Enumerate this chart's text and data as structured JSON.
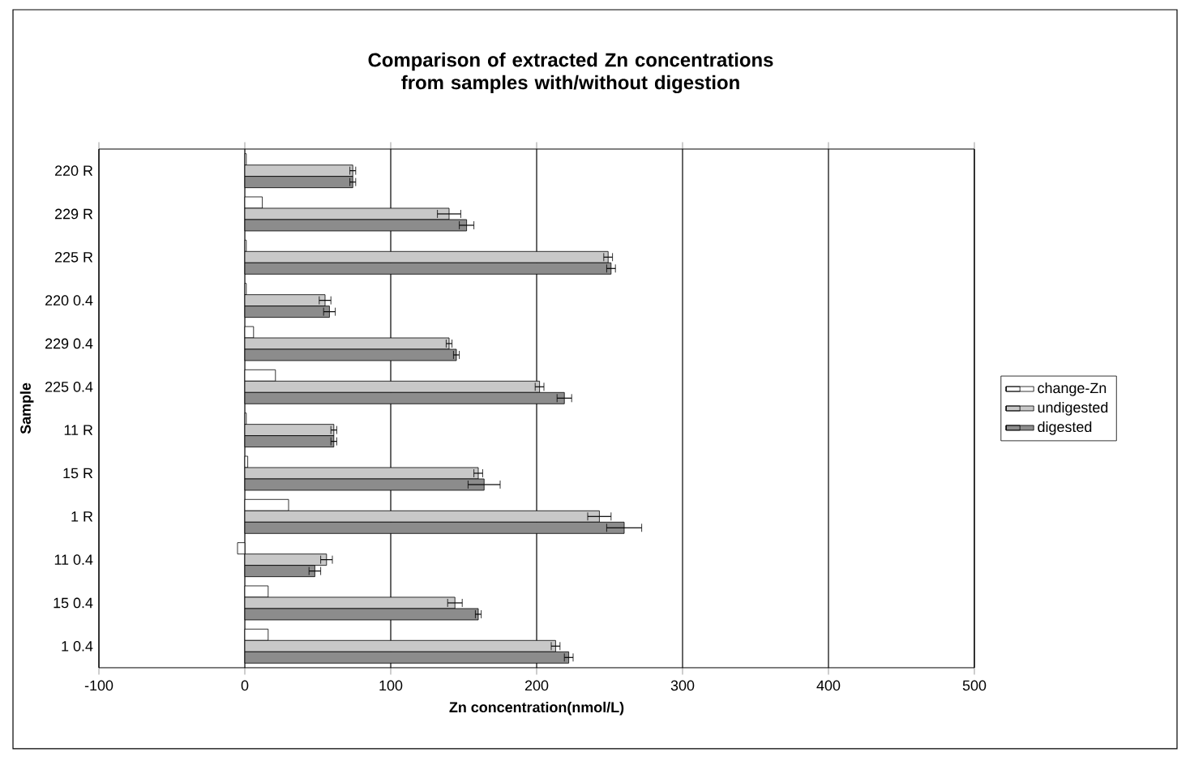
{
  "chart_data": {
    "type": "bar",
    "orientation": "horizontal",
    "title": "Comparison of extracted Zn concentrations from samples with/without digestion",
    "xlabel": "Zn concentration(nmol/L)",
    "ylabel": "Sample",
    "categories": [
      "220 R",
      "229 R",
      "225 R",
      "220 0.4",
      "229 0.4",
      "225 0.4",
      "11 R",
      "15 R",
      "1 R",
      "11 0.4",
      "15 0.4",
      "1 0.4"
    ],
    "series": [
      {
        "name": "change-Zn",
        "color": "#ffffff",
        "values": [
          1,
          12,
          1,
          1,
          6,
          21,
          1,
          2,
          30,
          -5,
          16,
          16
        ]
      },
      {
        "name": "undigested",
        "color": "#c8c8c8",
        "values": [
          74,
          140,
          249,
          55,
          140,
          202,
          61,
          160,
          243,
          56,
          144,
          213
        ],
        "errors": [
          2,
          8,
          3,
          4,
          2,
          3,
          2,
          3,
          8,
          4,
          5,
          3
        ]
      },
      {
        "name": "digested",
        "color": "#8c8c8c",
        "values": [
          74,
          152,
          251,
          58,
          145,
          219,
          61,
          164,
          260,
          48,
          160,
          222
        ],
        "errors": [
          2,
          5,
          3,
          4,
          2,
          5,
          2,
          11,
          12,
          4,
          2,
          3
        ]
      }
    ],
    "xlim": [
      -100,
      500
    ],
    "xticks": [
      -100,
      0,
      100,
      200,
      300,
      400,
      500
    ],
    "grid": "x",
    "legend": "right"
  }
}
